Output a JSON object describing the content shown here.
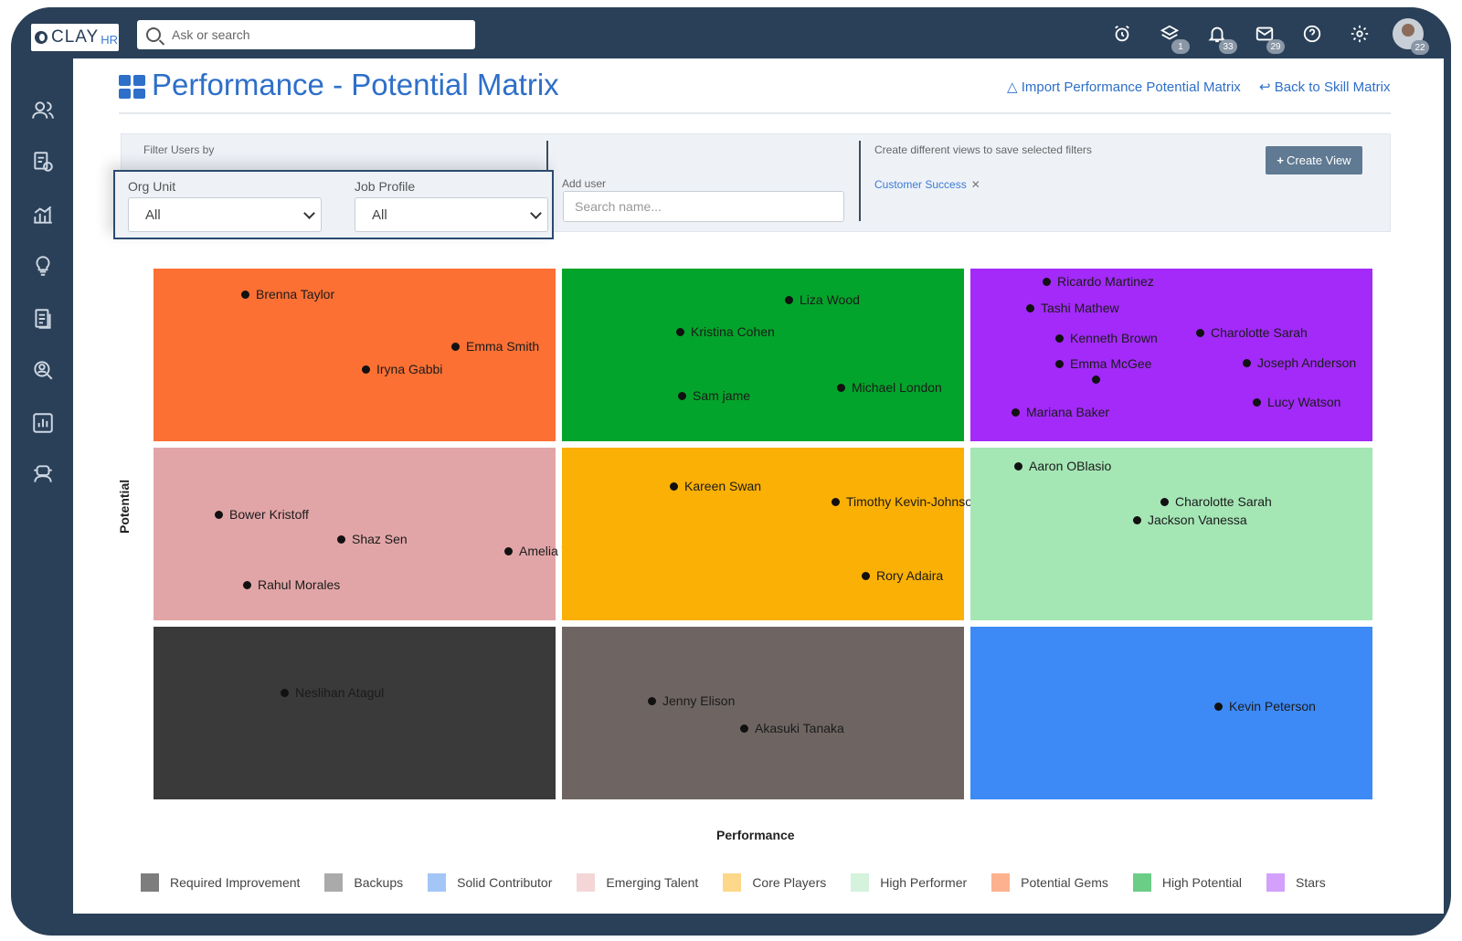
{
  "app": {
    "logo_text": "CLAY",
    "logo_suffix": "HR"
  },
  "search": {
    "placeholder": "Ask or search"
  },
  "top_icons": [
    {
      "name": "alarm-icon",
      "badge": ""
    },
    {
      "name": "layers-icon",
      "badge": "1"
    },
    {
      "name": "bell-icon",
      "badge": "33"
    },
    {
      "name": "mail-icon",
      "badge": "29"
    },
    {
      "name": "help-icon",
      "badge": ""
    },
    {
      "name": "gear-icon",
      "badge": ""
    }
  ],
  "avatar_badge": "22",
  "page": {
    "title": "Performance - Potential Matrix",
    "import_link": "Import Performance Potential Matrix",
    "back_link": "Back to Skill Matrix"
  },
  "filters": {
    "filter_by_label": "Filter Users by",
    "org_unit_label": "Org Unit",
    "org_unit_value": "All",
    "job_profile_label": "Job Profile",
    "job_profile_value": "All",
    "add_user_label": "Add user",
    "add_user_placeholder": "Search name...",
    "views_label": "Create different views to save selected filters",
    "saved_view": "Customer Success",
    "create_view_label": "Create View"
  },
  "chart_data": {
    "type": "scatter",
    "title": "Performance - Potential Matrix",
    "xlabel": "Performance",
    "ylabel": "Potential",
    "categories": [
      {
        "name": "Required Improvement",
        "color": "#3a3a3a"
      },
      {
        "name": "Backups",
        "color": "#6e6563"
      },
      {
        "name": "Solid Contributor",
        "color": "#3d8af7"
      },
      {
        "name": "Emerging Talent",
        "color": "#e2a5a7"
      },
      {
        "name": "Core Players",
        "color": "#fbb005"
      },
      {
        "name": "High Performer",
        "color": "#a5e6b5"
      },
      {
        "name": "Potential Gems",
        "color": "#fd7034"
      },
      {
        "name": "High Potential",
        "color": "#03a42b"
      },
      {
        "name": "Stars",
        "color": "#a32af9"
      }
    ],
    "cells": [
      {
        "category": "Potential Gems",
        "people": [
          "Brenna Taylor",
          "Emma Smith",
          "Iryna Gabbi"
        ]
      },
      {
        "category": "High Potential",
        "people": [
          "Liza Wood",
          "Kristina Cohen",
          "Sam jame",
          "Michael London"
        ]
      },
      {
        "category": "Stars",
        "people": [
          "Ricardo Martinez",
          "Tashi Mathew",
          "Kenneth Brown",
          "Charolotte Sarah",
          "Emma McGee",
          "Joseph Anderson",
          "Lucy Watson",
          "Mariana Baker"
        ]
      },
      {
        "category": "Emerging Talent",
        "people": [
          "Bower Kristoff",
          "Shaz Sen",
          "Amelia Wiggins",
          "Rahul Morales"
        ]
      },
      {
        "category": "Core Players",
        "people": [
          "Kareen Swan",
          "Timothy Kevin-Johnson",
          "Rory Adaira"
        ]
      },
      {
        "category": "High Performer",
        "people": [
          "Aaron OBlasio",
          "Charolotte Sarah",
          "Jackson Vanessa"
        ]
      },
      {
        "category": "Required Improvement",
        "people": [
          "Neslihan Atagul"
        ]
      },
      {
        "category": "Backups",
        "people": [
          "Jenny Elison",
          "Akasuki Tanaka"
        ]
      },
      {
        "category": "Solid Contributor",
        "people": [
          "Kevin Peterson"
        ]
      }
    ]
  }
}
